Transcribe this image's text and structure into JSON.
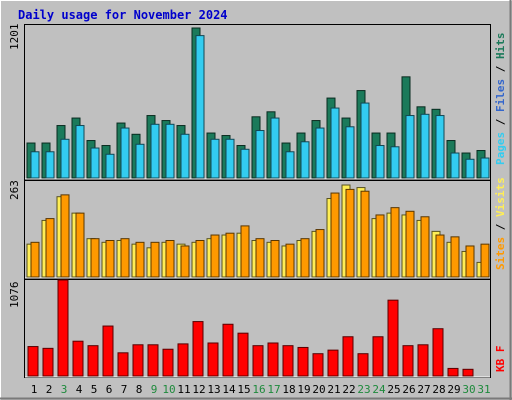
{
  "chart_data": [
    {
      "type": "bar",
      "title": "Daily usage for November 2024",
      "categories": [
        "1",
        "2",
        "3",
        "4",
        "5",
        "6",
        "7",
        "8",
        "9",
        "10",
        "11",
        "12",
        "13",
        "14",
        "15",
        "16",
        "17",
        "18",
        "19",
        "20",
        "21",
        "22",
        "23",
        "24",
        "25",
        "26",
        "27",
        "28",
        "29",
        "30",
        "31"
      ],
      "weekend_days": [
        "3",
        "9",
        "10",
        "16",
        "17",
        "23",
        "24",
        "30",
        "31"
      ],
      "ymax_label": "1201",
      "ylim": [
        0,
        1201
      ],
      "legend": [
        "Pages",
        "Files",
        "Hits"
      ],
      "series": [
        {
          "name": "Hits",
          "color": "#1b7a5a",
          "values": [
            280,
            280,
            420,
            480,
            300,
            260,
            440,
            350,
            500,
            460,
            420,
            1201,
            360,
            340,
            260,
            490,
            530,
            280,
            360,
            460,
            640,
            480,
            700,
            360,
            360,
            810,
            570,
            550,
            300,
            200,
            220
          ]
        },
        {
          "name": "Files",
          "color": "#33ccf0",
          "values": [
            210,
            210,
            310,
            420,
            240,
            190,
            400,
            270,
            430,
            430,
            350,
            1140,
            310,
            310,
            230,
            380,
            480,
            210,
            290,
            400,
            560,
            410,
            600,
            260,
            250,
            500,
            510,
            500,
            200,
            150,
            160
          ]
        }
      ]
    },
    {
      "type": "bar",
      "ymax_label": "263",
      "ylim": [
        0,
        263
      ],
      "legend": [
        "Sites",
        "Visits"
      ],
      "series": [
        {
          "name": "Visits",
          "color": "#ffee55",
          "values": [
            90,
            155,
            220,
            175,
            105,
            95,
            100,
            90,
            80,
            95,
            90,
            95,
            105,
            115,
            120,
            100,
            95,
            85,
            100,
            125,
            215,
            252,
            245,
            160,
            175,
            170,
            155,
            125,
            95,
            70,
            40
          ]
        },
        {
          "name": "Sites",
          "color": "#ff9900",
          "values": [
            95,
            160,
            225,
            175,
            105,
            100,
            105,
            95,
            95,
            100,
            85,
            100,
            115,
            120,
            140,
            105,
            100,
            90,
            105,
            130,
            230,
            240,
            235,
            170,
            190,
            180,
            165,
            115,
            110,
            85,
            90
          ]
        }
      ]
    },
    {
      "type": "bar",
      "ymax_label": "1076",
      "ylim": [
        0,
        1076
      ],
      "legend": [
        "KB",
        "F"
      ],
      "series": [
        {
          "name": "KB F",
          "color": "#ff0000",
          "values": [
            330,
            310,
            1076,
            390,
            340,
            560,
            260,
            350,
            350,
            300,
            360,
            610,
            370,
            580,
            480,
            340,
            370,
            340,
            320,
            250,
            290,
            440,
            250,
            440,
            850,
            340,
            350,
            530,
            85,
            75,
            0
          ]
        }
      ]
    }
  ]
}
